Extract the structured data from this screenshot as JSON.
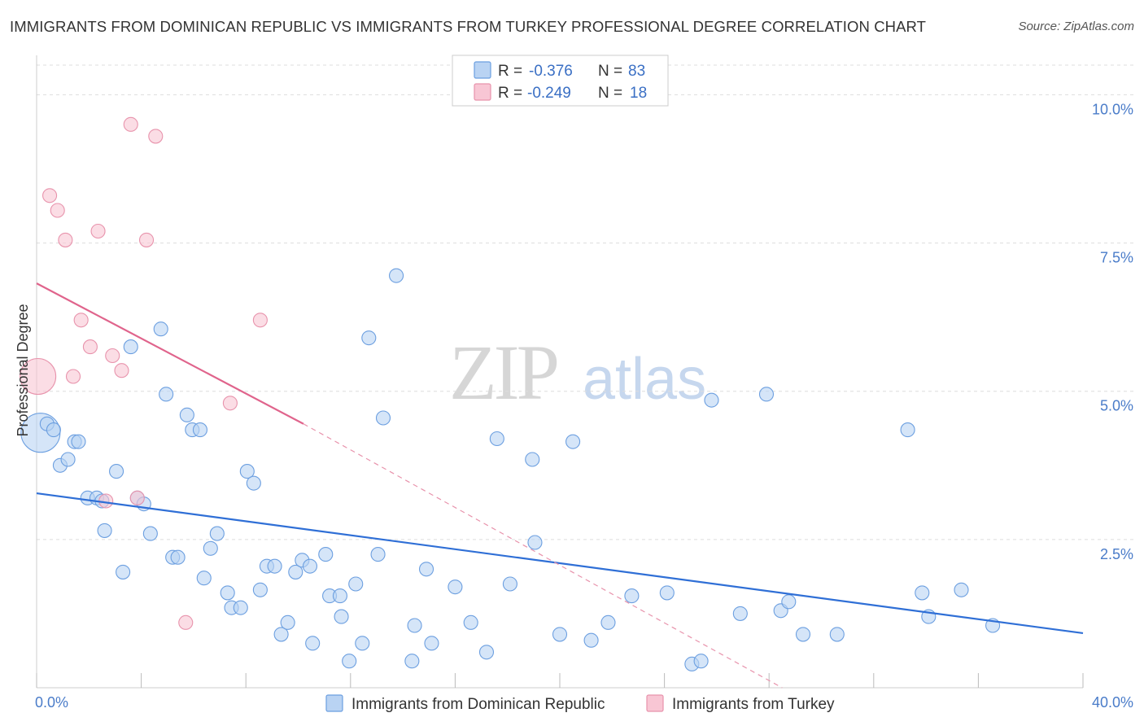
{
  "title": "IMMIGRANTS FROM DOMINICAN REPUBLIC VS IMMIGRANTS FROM TURKEY PROFESSIONAL DEGREE CORRELATION CHART",
  "source": "Source: ZipAtlas.com",
  "watermark": {
    "zip": "ZIP",
    "atlas": "atlas"
  },
  "colors": {
    "blue_fill": "#b9d3f3",
    "blue_stroke": "#6c9fe0",
    "blue_line": "#2f6fd6",
    "pink_fill": "#f8c6d4",
    "pink_stroke": "#e893ac",
    "pink_line": "#e0648c",
    "grid": "#dddddd",
    "tick_text": "#4a7cc9"
  },
  "legend": {
    "rows": [
      {
        "r_label": "R = ",
        "r_value": "-0.376",
        "n_label": "N = ",
        "n_value": "83"
      },
      {
        "r_label": "R = ",
        "r_value": "-0.249",
        "n_label": "N = ",
        "n_value": "18"
      }
    ]
  },
  "chart_data": {
    "type": "scatter",
    "title": "IMMIGRANTS FROM DOMINICAN REPUBLIC VS IMMIGRANTS FROM TURKEY PROFESSIONAL DEGREE CORRELATION CHART",
    "xlabel": "",
    "ylabel": "Professional Degree",
    "xlim": [
      0,
      40
    ],
    "ylim": [
      0,
      10.5
    ],
    "x_tick_labels": [
      "0.0%",
      "40.0%"
    ],
    "y_ticks": [
      2.5,
      5.0,
      7.5,
      10.0
    ],
    "y_tick_labels": [
      "2.5%",
      "5.0%",
      "7.5%",
      "10.0%"
    ],
    "grid": "horizontal dashed",
    "legend_position": "top-center",
    "series": [
      {
        "name": "Immigrants from Dominican Republic",
        "color": "#b9d3f3",
        "r": -0.376,
        "n": 83,
        "points": [
          [
            0.15,
            4.3
          ],
          [
            0.4,
            4.45
          ],
          [
            0.65,
            4.35
          ],
          [
            0.9,
            3.75
          ],
          [
            1.2,
            3.85
          ],
          [
            1.45,
            4.15
          ],
          [
            1.6,
            4.15
          ],
          [
            1.95,
            3.2
          ],
          [
            2.3,
            3.2
          ],
          [
            2.5,
            3.15
          ],
          [
            2.6,
            2.65
          ],
          [
            3.05,
            3.65
          ],
          [
            3.3,
            1.95
          ],
          [
            3.6,
            5.75
          ],
          [
            3.85,
            3.2
          ],
          [
            4.1,
            3.1
          ],
          [
            4.35,
            2.6
          ],
          [
            4.75,
            6.05
          ],
          [
            4.95,
            4.95
          ],
          [
            5.2,
            2.2
          ],
          [
            5.4,
            2.2
          ],
          [
            5.75,
            4.6
          ],
          [
            5.95,
            4.35
          ],
          [
            6.25,
            4.35
          ],
          [
            6.4,
            1.85
          ],
          [
            6.65,
            2.35
          ],
          [
            6.9,
            2.6
          ],
          [
            7.3,
            1.6
          ],
          [
            7.45,
            1.35
          ],
          [
            7.8,
            1.35
          ],
          [
            8.05,
            3.65
          ],
          [
            8.3,
            3.45
          ],
          [
            8.55,
            1.65
          ],
          [
            8.8,
            2.05
          ],
          [
            9.1,
            2.05
          ],
          [
            9.35,
            0.9
          ],
          [
            9.6,
            1.1
          ],
          [
            9.9,
            1.95
          ],
          [
            10.15,
            2.15
          ],
          [
            10.45,
            2.05
          ],
          [
            10.55,
            0.75
          ],
          [
            11.05,
            2.25
          ],
          [
            11.2,
            1.55
          ],
          [
            11.6,
            1.55
          ],
          [
            11.65,
            1.2
          ],
          [
            11.95,
            0.45
          ],
          [
            12.2,
            1.75
          ],
          [
            12.45,
            0.75
          ],
          [
            12.7,
            5.9
          ],
          [
            13.05,
            2.25
          ],
          [
            13.25,
            4.55
          ],
          [
            13.75,
            6.95
          ],
          [
            14.35,
            0.45
          ],
          [
            14.45,
            1.05
          ],
          [
            14.9,
            2.0
          ],
          [
            15.1,
            0.75
          ],
          [
            16.0,
            1.7
          ],
          [
            16.6,
            1.1
          ],
          [
            17.2,
            0.6
          ],
          [
            17.6,
            4.2
          ],
          [
            18.1,
            1.75
          ],
          [
            18.95,
            3.85
          ],
          [
            19.05,
            2.45
          ],
          [
            20.0,
            0.9
          ],
          [
            20.5,
            4.15
          ],
          [
            21.2,
            0.8
          ],
          [
            21.85,
            1.1
          ],
          [
            22.75,
            1.55
          ],
          [
            24.1,
            1.6
          ],
          [
            25.05,
            0.4
          ],
          [
            25.4,
            0.45
          ],
          [
            25.8,
            4.85
          ],
          [
            26.9,
            1.25
          ],
          [
            27.9,
            4.95
          ],
          [
            28.45,
            1.3
          ],
          [
            28.75,
            1.45
          ],
          [
            29.3,
            0.9
          ],
          [
            30.6,
            0.9
          ],
          [
            33.3,
            4.35
          ],
          [
            33.85,
            1.6
          ],
          [
            34.1,
            1.2
          ],
          [
            35.35,
            1.65
          ],
          [
            36.55,
            1.05
          ]
        ],
        "trend": {
          "x": [
            0,
            40
          ],
          "y": [
            3.28,
            0.92
          ]
        }
      },
      {
        "name": "Immigrants from Turkey",
        "color": "#f8c6d4",
        "r": -0.249,
        "n": 18,
        "points": [
          [
            0.05,
            5.25
          ],
          [
            0.5,
            8.3
          ],
          [
            0.8,
            8.05
          ],
          [
            1.1,
            7.55
          ],
          [
            1.4,
            5.25
          ],
          [
            1.7,
            6.2
          ],
          [
            2.05,
            5.75
          ],
          [
            2.35,
            7.7
          ],
          [
            2.65,
            3.15
          ],
          [
            2.9,
            5.6
          ],
          [
            3.25,
            5.35
          ],
          [
            3.6,
            9.5
          ],
          [
            3.85,
            3.2
          ],
          [
            4.2,
            7.55
          ],
          [
            4.55,
            9.3
          ],
          [
            5.7,
            1.1
          ],
          [
            7.4,
            4.8
          ],
          [
            8.55,
            6.2
          ]
        ],
        "trend": {
          "x": [
            0,
            10.2
          ],
          "y": [
            6.82,
            4.45
          ]
        },
        "trend_extension": {
          "x": [
            10.2,
            28.5
          ],
          "y": [
            4.45,
            0.0
          ]
        }
      }
    ]
  },
  "bottom_legend": {
    "items": [
      {
        "label": "Immigrants from Dominican Republic"
      },
      {
        "label": "Immigrants from Turkey"
      }
    ]
  }
}
